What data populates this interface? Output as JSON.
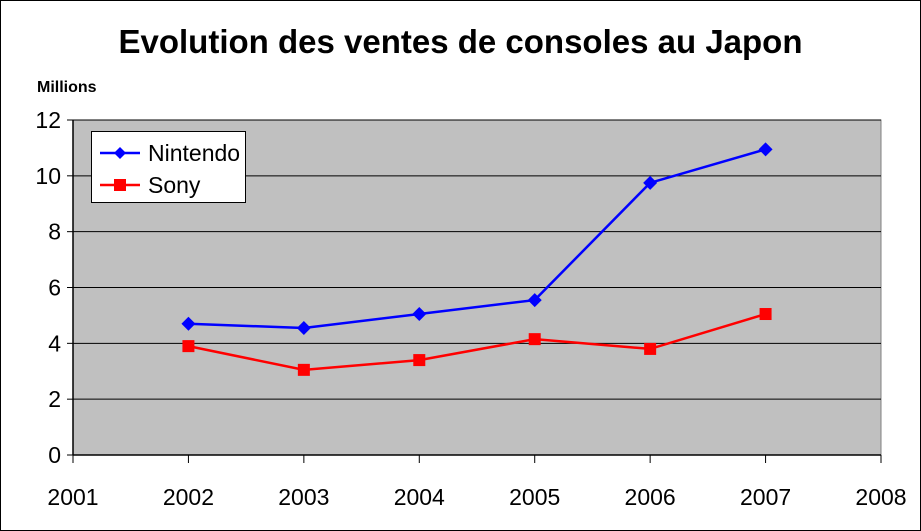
{
  "chart_data": {
    "type": "line",
    "title": "Evolution des ventes de consoles au Japon",
    "ylabel": "Millions",
    "xlabel": "",
    "x": [
      2002,
      2003,
      2004,
      2005,
      2006,
      2007
    ],
    "x_ticks": [
      "2001",
      "2002",
      "2003",
      "2004",
      "2005",
      "2006",
      "2007",
      "2008"
    ],
    "xlim": [
      2001,
      2008
    ],
    "y_ticks": [
      "0",
      "2",
      "4",
      "6",
      "8",
      "10",
      "12"
    ],
    "ylim": [
      0,
      12
    ],
    "grid": true,
    "legend_position": "top-left",
    "plot_background": "#c0c0c0",
    "series": [
      {
        "name": "Nintendo",
        "color": "#0000ff",
        "marker": "diamond",
        "values": [
          4.7,
          4.55,
          5.05,
          5.55,
          9.75,
          10.95
        ]
      },
      {
        "name": "Sony",
        "color": "#ff0000",
        "marker": "square",
        "values": [
          3.9,
          3.05,
          3.4,
          4.15,
          3.8,
          5.05
        ]
      }
    ]
  }
}
